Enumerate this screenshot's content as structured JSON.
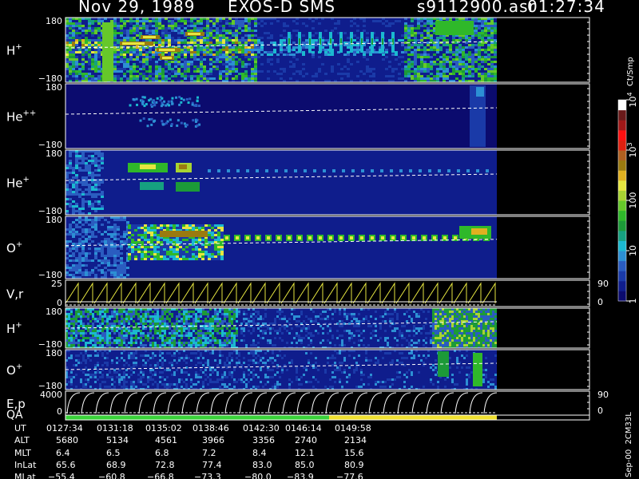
{
  "header": {
    "date": "Nov 29, 1989",
    "instrument": "EXOS-D SMS",
    "file": "s9112900.asr",
    "time": "01:27:34"
  },
  "panels": [
    {
      "label": "H",
      "sup": "+",
      "ytop": "180",
      "ybot": "−180"
    },
    {
      "label": "He",
      "sup": "++",
      "ytop": "180",
      "ybot": "−180"
    },
    {
      "label": "He",
      "sup": "+",
      "ytop": "180",
      "ybot": "−180"
    },
    {
      "label": "O",
      "sup": "+",
      "ytop": "180",
      "ybot": "−180"
    },
    {
      "label": "V,r",
      "sup": "",
      "ytop": "25",
      "ybot": "0",
      "rtop": "90",
      "rbot": "0"
    },
    {
      "label": "H",
      "sup": "+",
      "ytop": "180",
      "ybot": "−180"
    },
    {
      "label": "O",
      "sup": "+",
      "ytop": "180",
      "ybot": "−180"
    },
    {
      "label": "E,p",
      "sup": "",
      "ytop": "4000",
      "ybot": "0",
      "rtop": "90",
      "rbot": "0"
    }
  ],
  "qa_label": "QA",
  "colorbar": {
    "unit": "Ct/Smp",
    "ticks": [
      {
        "base": "10",
        "exp": "4",
        "value": 10000
      },
      {
        "base": "10",
        "exp": "3",
        "value": 1000
      },
      {
        "base": "100",
        "exp": "",
        "value": 100
      },
      {
        "base": "10",
        "exp": "",
        "value": 10
      },
      {
        "base": "1",
        "exp": "",
        "value": 1
      }
    ],
    "colors": [
      "#0b0b6e",
      "#0f1d8c",
      "#1a3aa8",
      "#2a5cc0",
      "#2c8fd4",
      "#1bb8d0",
      "#16a080",
      "#1c9a38",
      "#2fb82a",
      "#66c82a",
      "#a8d432",
      "#e6e640",
      "#e0b020",
      "#9a7a10",
      "#b06020",
      "#e02010",
      "#ff1010",
      "#a01818",
      "#6a1a1a",
      "#ffffff"
    ]
  },
  "side_label": "Sep-00  2CM33L",
  "chart_data": {
    "type": "heatmap",
    "title": "Nov 29, 1989   EXOS-D SMS",
    "y_range": [
      -180,
      180
    ],
    "colorbar_range": [
      1,
      10000
    ],
    "colorbar_scale": "log",
    "table": {
      "rows": [
        {
          "name": "UT",
          "values": [
            "0127:34",
            "0131:18",
            "0135:02",
            "0138:46",
            "0142:30",
            "0146:14",
            "0149:58"
          ]
        },
        {
          "name": "ALT",
          "values": [
            "5680",
            "5134",
            "4561",
            "3966",
            "3356",
            "2740",
            "2134"
          ]
        },
        {
          "name": "MLT",
          "values": [
            "6.4",
            "6.5",
            "6.8",
            "7.2",
            "8.4",
            "12.1",
            "15.6"
          ]
        },
        {
          "name": "InLat",
          "values": [
            "65.6",
            "68.9",
            "72.8",
            "77.4",
            "83.0",
            "85.0",
            "80.9"
          ]
        },
        {
          "name": "MLat",
          "values": [
            "−55.4",
            "−60.8",
            "−66.8",
            "−73.3",
            "−80.0",
            "−83.9",
            "−77.6"
          ]
        }
      ]
    },
    "qa_segments": [
      {
        "from": "0127:34",
        "to": "0142:30",
        "color": "#3ad23a"
      },
      {
        "from": "0142:30",
        "to": "0152:30",
        "color": "#f0e030"
      }
    ]
  }
}
